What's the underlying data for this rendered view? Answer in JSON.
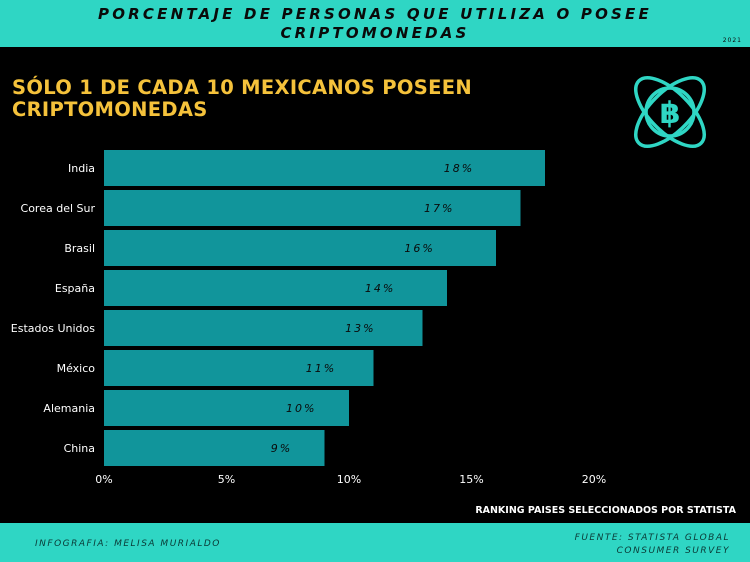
{
  "header": {
    "title": "PORCENTAJE DE PERSONAS QUE UTILIZA O POSEE CRIPTOMONEDAS",
    "year": "2021"
  },
  "headline": "SÓLO 1 DE CADA 10 MEXICANOS POSEEN CRIPTOMONEDAS",
  "ranking_note": "RANKING PAISES SELECCIONADOS POR STATISTA",
  "footer": {
    "credit": "INFOGRAFIA: MELISA MURIALDO",
    "source_line1": "FUENTE: STATISTA GLOBAL",
    "source_line2": "CONSUMER SURVEY"
  },
  "colors": {
    "accent": "#2fd6c4",
    "bar": "#11959b",
    "headline": "#f5c23b",
    "background": "#000000"
  },
  "chart_data": {
    "type": "bar",
    "orientation": "horizontal",
    "title": "PORCENTAJE DE PERSONAS QUE UTILIZA O POSEE CRIPTOMONEDAS",
    "categories": [
      "India",
      "Corea del Sur",
      "Brasil",
      "España",
      "Estados Unidos",
      "México",
      "Alemania",
      "China"
    ],
    "values": [
      18,
      17,
      16,
      14,
      13,
      11,
      10,
      9
    ],
    "value_labels": [
      "18%",
      "17%",
      "16%",
      "14%",
      "13%",
      "11%",
      "10%",
      "9%"
    ],
    "xlim": [
      0,
      20
    ],
    "xticks": [
      0,
      5,
      10,
      15,
      20
    ],
    "xtick_labels": [
      "0%",
      "5%",
      "10%",
      "15%",
      "20%"
    ],
    "xlabel": "",
    "ylabel": "",
    "grid": false
  }
}
